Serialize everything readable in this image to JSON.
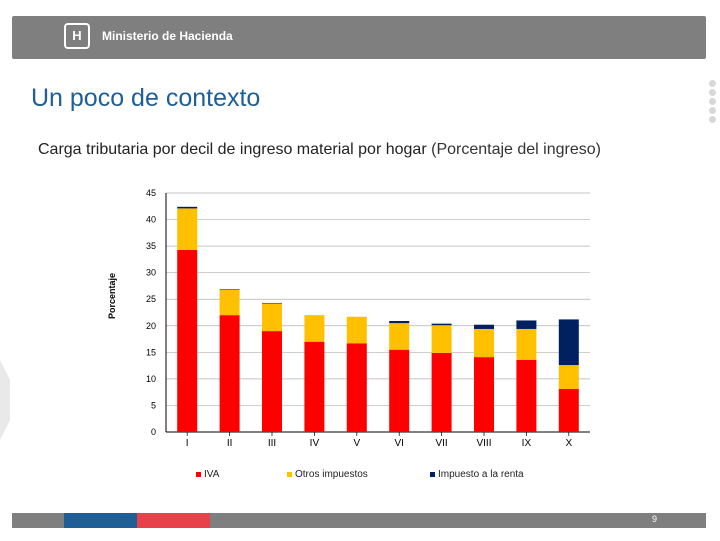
{
  "header": {
    "logo_glyph": "H",
    "org_name": "Ministerio de Hacienda"
  },
  "slide_title": "Un poco de contexto",
  "chart_heading": {
    "main": "Carga tributaria por decil de ingreso material por hogar",
    "sub": "(Porcentaje del ingreso)"
  },
  "colors": {
    "iva": "#ff0000",
    "otros": "#ffc000",
    "renta": "#002060",
    "title_blue": "#1f5f96"
  },
  "chart_data": {
    "type": "bar",
    "stacked": true,
    "title": "Carga tributaria por decil de ingreso material por hogar (Porcentaje del ingreso)",
    "xlabel": "",
    "ylabel": "Porcentaje",
    "ylim": [
      0,
      45
    ],
    "yticks": [
      0,
      5,
      10,
      15,
      20,
      25,
      30,
      35,
      40,
      45
    ],
    "grid": true,
    "categories": [
      "I",
      "II",
      "III",
      "IV",
      "V",
      "VI",
      "VII",
      "VIII",
      "IX",
      "X"
    ],
    "series": [
      {
        "name": "IVA",
        "values": [
          34.3,
          22.0,
          19.0,
          17.0,
          16.7,
          15.5,
          14.9,
          14.1,
          13.6,
          8.1
        ]
      },
      {
        "name": "Otros impuestos",
        "values": [
          7.8,
          4.8,
          5.2,
          5.0,
          5.0,
          5.0,
          5.2,
          5.3,
          5.8,
          4.5
        ]
      },
      {
        "name": "Impuesto a la renta",
        "values": [
          0.3,
          0.1,
          0.1,
          0.0,
          0.0,
          0.4,
          0.3,
          0.8,
          1.6,
          8.6
        ]
      }
    ],
    "legend_position": "bottom"
  },
  "footer": {
    "page_number": "9"
  }
}
